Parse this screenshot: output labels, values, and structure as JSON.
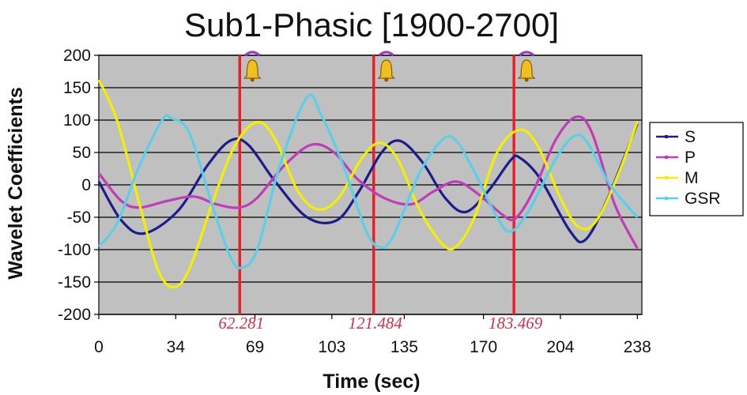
{
  "chart_data": {
    "type": "line",
    "title": "Sub1-Phasic [1900-2700]",
    "xlabel": "Time (sec)",
    "ylabel": "Wavelet Coefficients",
    "xlim": [
      0,
      240
    ],
    "ylim": [
      -200,
      200
    ],
    "x_tick_labels": [
      {
        "value": 0,
        "label": "0"
      },
      {
        "value": 34,
        "label": "34"
      },
      {
        "value": 69,
        "label": "69"
      },
      {
        "value": 103,
        "label": "103"
      },
      {
        "value": 135,
        "label": "135"
      },
      {
        "value": 170,
        "label": "170"
      },
      {
        "value": 204,
        "label": "204"
      },
      {
        "value": 238,
        "label": "238"
      }
    ],
    "y_ticks": [
      200,
      150,
      100,
      50,
      0,
      -50,
      -100,
      -150,
      -200
    ],
    "y_tick_labels": [
      "200",
      "150",
      "100",
      "50",
      "0",
      "-50",
      "-100",
      "-150",
      "-200"
    ],
    "grid": "horizontal",
    "plot_background": "#c0c0c0",
    "legend_position": "right",
    "series": [
      {
        "name": "S",
        "color": "#1c1c8c",
        "points": [
          [
            0,
            5
          ],
          [
            10,
            -55
          ],
          [
            20,
            -75
          ],
          [
            35,
            -40
          ],
          [
            48,
            30
          ],
          [
            58,
            68
          ],
          [
            66,
            62
          ],
          [
            78,
            5
          ],
          [
            92,
            -50
          ],
          [
            105,
            -55
          ],
          [
            115,
            -10
          ],
          [
            125,
            50
          ],
          [
            133,
            68
          ],
          [
            143,
            35
          ],
          [
            153,
            -20
          ],
          [
            162,
            -42
          ],
          [
            172,
            -10
          ],
          [
            182,
            38
          ],
          [
            186,
            42
          ],
          [
            195,
            10
          ],
          [
            208,
            -70
          ],
          [
            215,
            -85
          ],
          [
            225,
            -20
          ],
          [
            238,
            95
          ]
        ]
      },
      {
        "name": "P",
        "color": "#c03cb8",
        "points": [
          [
            0,
            18
          ],
          [
            10,
            -25
          ],
          [
            18,
            -35
          ],
          [
            30,
            -25
          ],
          [
            42,
            -18
          ],
          [
            52,
            -30
          ],
          [
            62,
            -35
          ],
          [
            70,
            -20
          ],
          [
            82,
            30
          ],
          [
            94,
            62
          ],
          [
            104,
            50
          ],
          [
            114,
            10
          ],
          [
            126,
            -20
          ],
          [
            138,
            -30
          ],
          [
            148,
            -10
          ],
          [
            158,
            5
          ],
          [
            168,
            -15
          ],
          [
            178,
            -45
          ],
          [
            184,
            -52
          ],
          [
            192,
            -10
          ],
          [
            202,
            70
          ],
          [
            211,
            105
          ],
          [
            218,
            80
          ],
          [
            228,
            -30
          ],
          [
            238,
            -98
          ]
        ]
      },
      {
        "name": "M",
        "color": "#f2f000",
        "points": [
          [
            0,
            162
          ],
          [
            8,
            100
          ],
          [
            18,
            -30
          ],
          [
            26,
            -130
          ],
          [
            33,
            -158
          ],
          [
            40,
            -130
          ],
          [
            50,
            -30
          ],
          [
            60,
            60
          ],
          [
            70,
            97
          ],
          [
            78,
            70
          ],
          [
            88,
            -10
          ],
          [
            97,
            -38
          ],
          [
            106,
            -20
          ],
          [
            116,
            40
          ],
          [
            124,
            65
          ],
          [
            132,
            40
          ],
          [
            142,
            -40
          ],
          [
            152,
            -92
          ],
          [
            158,
            -95
          ],
          [
            166,
            -50
          ],
          [
            176,
            50
          ],
          [
            186,
            85
          ],
          [
            194,
            60
          ],
          [
            204,
            -20
          ],
          [
            212,
            -65
          ],
          [
            220,
            -55
          ],
          [
            230,
            20
          ],
          [
            238,
            98
          ]
        ]
      },
      {
        "name": "GSR",
        "color": "#5ad0e8",
        "points": [
          [
            0,
            -95
          ],
          [
            8,
            -60
          ],
          [
            18,
            30
          ],
          [
            28,
            100
          ],
          [
            32,
            103
          ],
          [
            40,
            80
          ],
          [
            50,
            -30
          ],
          [
            58,
            -110
          ],
          [
            63,
            -128
          ],
          [
            70,
            -100
          ],
          [
            80,
            30
          ],
          [
            92,
            135
          ],
          [
            98,
            110
          ],
          [
            108,
            30
          ],
          [
            118,
            -70
          ],
          [
            124,
            -96
          ],
          [
            130,
            -80
          ],
          [
            142,
            20
          ],
          [
            152,
            70
          ],
          [
            158,
            68
          ],
          [
            166,
            20
          ],
          [
            176,
            -50
          ],
          [
            182,
            -72
          ],
          [
            190,
            -40
          ],
          [
            202,
            40
          ],
          [
            210,
            75
          ],
          [
            216,
            65
          ],
          [
            226,
            0
          ],
          [
            238,
            -50
          ]
        ]
      }
    ],
    "events": [
      {
        "x": 62.281,
        "label": "62.281"
      },
      {
        "x": 121.484,
        "label": "121.484"
      },
      {
        "x": 183.469,
        "label": "183.469"
      }
    ],
    "event_line_color": "#e8202a",
    "event_icon": "bell-icon"
  }
}
